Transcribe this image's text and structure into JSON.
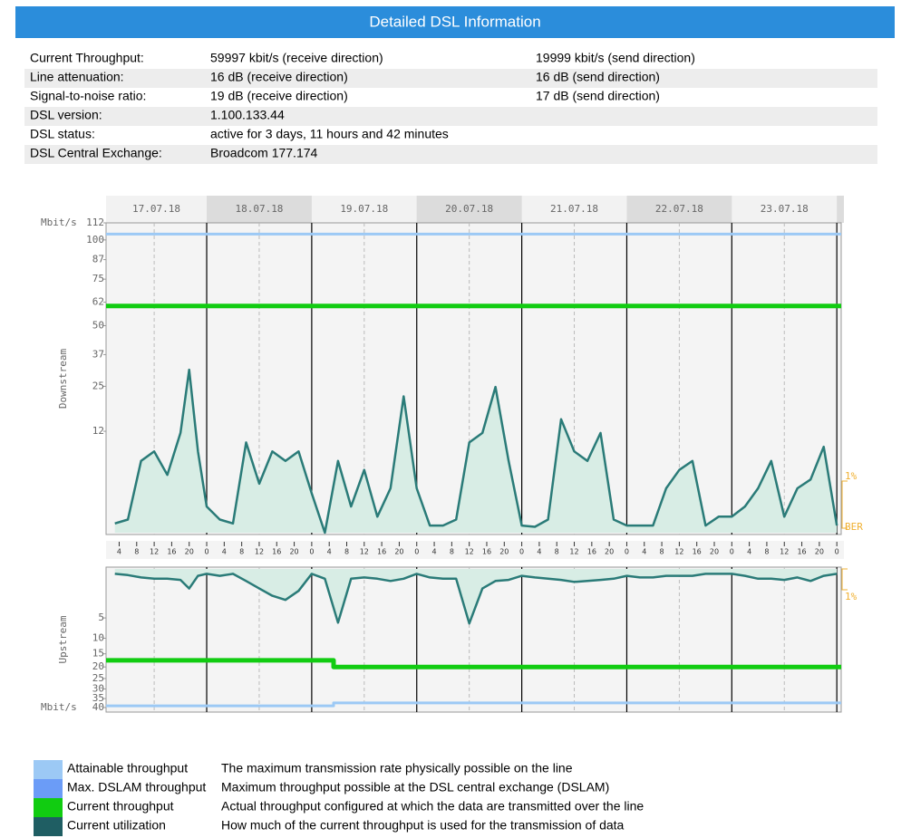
{
  "header": {
    "title": "Detailed DSL Information"
  },
  "info": {
    "rows": [
      [
        "Current Throughput:",
        "59997 kbit/s (receive direction)",
        "19999 kbit/s (send direction)"
      ],
      [
        "Line attenuation:",
        "16 dB (receive direction)",
        "16 dB (send direction)"
      ],
      [
        "Signal-to-noise ratio:",
        "19 dB (receive direction)",
        "17 dB (send direction)"
      ],
      [
        "DSL version:",
        "1.100.133.44"
      ],
      [
        "DSL status:",
        "active for 3 days, 11 hours and 42 minutes"
      ],
      [
        "DSL Central Exchange:",
        "Broadcom 177.174"
      ]
    ]
  },
  "date_header": {
    "dates": [
      "17.07.18",
      "18.07.18",
      "19.07.18",
      "20.07.18",
      "21.07.18",
      "22.07.18",
      "23.07.18"
    ]
  },
  "chart_data": [
    {
      "type": "line",
      "axis_label": "Downstream",
      "unit_label": "Mbit/s",
      "scale": "sqrt",
      "xlim": [
        1,
        169
      ],
      "ylim": [
        0,
        112
      ],
      "yticks": [
        12,
        25,
        37,
        50,
        62,
        75,
        87,
        100,
        112
      ],
      "xticks": [
        4,
        8,
        12,
        16,
        20,
        {
          "value": 24,
          "label": "0"
        },
        {
          "value": 28,
          "label": "4"
        },
        {
          "value": 32,
          "label": "8"
        },
        {
          "value": 36,
          "label": "12"
        },
        {
          "value": 40,
          "label": "16"
        },
        {
          "value": 44,
          "label": "20"
        },
        {
          "value": 48,
          "label": "0"
        },
        {
          "value": 52,
          "label": "4"
        },
        {
          "value": 56,
          "label": "8"
        },
        {
          "value": 60,
          "label": "12"
        },
        {
          "value": 64,
          "label": "16"
        },
        {
          "value": 68,
          "label": "20"
        },
        {
          "value": 72,
          "label": "0"
        },
        {
          "value": 76,
          "label": "4"
        },
        {
          "value": 80,
          "label": "8"
        },
        {
          "value": 84,
          "label": "12"
        },
        {
          "value": 88,
          "label": "16"
        },
        {
          "value": 92,
          "label": "20"
        },
        {
          "value": 96,
          "label": "0"
        },
        {
          "value": 100,
          "label": "4"
        },
        {
          "value": 104,
          "label": "8"
        },
        {
          "value": 108,
          "label": "12"
        },
        {
          "value": 112,
          "label": "16"
        },
        {
          "value": 116,
          "label": "20"
        },
        {
          "value": 120,
          "label": "0"
        },
        {
          "value": 124,
          "label": "4"
        },
        {
          "value": 128,
          "label": "8"
        },
        {
          "value": 132,
          "label": "12"
        },
        {
          "value": 136,
          "label": "16"
        },
        {
          "value": 140,
          "label": "20"
        },
        {
          "value": 144,
          "label": "0"
        },
        {
          "value": 148,
          "label": "4"
        },
        {
          "value": 152,
          "label": "8"
        },
        {
          "value": 156,
          "label": "12"
        },
        {
          "value": 160,
          "label": "16"
        },
        {
          "value": 164,
          "label": "20"
        },
        {
          "value": 168,
          "label": "0"
        }
      ],
      "annotations": [
        "1%",
        "BER"
      ],
      "series": [
        {
          "color": "#9cc9f5",
          "x": [
            1,
            169
          ],
          "values": [
            104,
            104
          ]
        },
        {
          "color": "#11cc11",
          "x": [
            1,
            169
          ],
          "values": [
            60,
            60
          ]
        },
        {
          "color": "#2a7b78",
          "fill": "#d8ede5",
          "x": [
            3,
            6,
            9,
            12,
            15,
            18,
            20,
            22,
            24,
            27,
            30,
            33,
            36,
            39,
            42,
            45,
            48,
            51,
            54,
            57,
            60,
            63,
            66,
            69,
            72,
            75,
            78,
            81,
            84,
            87,
            90,
            93,
            96,
            99,
            102,
            105,
            108,
            111,
            114,
            117,
            120,
            123,
            126,
            129,
            132,
            135,
            138,
            141,
            144,
            147,
            150,
            153,
            156,
            159,
            162,
            165,
            168
          ],
          "values": [
            0.1,
            0.2,
            6,
            7.7,
            3.9,
            11.6,
            31,
            7.7,
            0.8,
            0.2,
            0.1,
            9.5,
            2.8,
            7.7,
            6,
            7.7,
            1.8,
            0,
            6,
            0.8,
            4.6,
            0.3,
            2.3,
            21.7,
            2.3,
            0.06,
            0.06,
            0.2,
            9.5,
            11.6,
            24.8,
            6,
            0.06,
            0.04,
            0.2,
            15,
            7.7,
            6,
            11.6,
            0.2,
            0.06,
            0.06,
            0.06,
            2.3,
            4.6,
            6,
            0.06,
            0.3,
            0.3,
            0.8,
            2.3,
            6,
            0.3,
            2.3,
            3.3,
            8.6,
            0.06
          ]
        }
      ]
    },
    {
      "type": "line",
      "axis_label": "Upstream",
      "unit_label": "Mbit/s",
      "scale": "sqrt",
      "inverted": true,
      "xlim": [
        1,
        169
      ],
      "ylim": [
        0,
        40
      ],
      "yticks": [
        5,
        10,
        15,
        20,
        25,
        30,
        35,
        40
      ],
      "annotations": [
        "1%"
      ],
      "series": [
        {
          "color": "#9cc9f5",
          "x": [
            1,
            53,
            53,
            169
          ],
          "values": [
            39,
            39,
            37.4,
            37.4
          ]
        },
        {
          "color": "#11cc11",
          "x": [
            1,
            53,
            53,
            169
          ],
          "values": [
            17.4,
            17.4,
            20,
            20
          ]
        },
        {
          "color": "#2a7b78",
          "fill": "#d8ede5",
          "x": [
            3,
            6,
            9,
            12,
            15,
            18,
            20,
            22,
            24,
            27,
            30,
            33,
            36,
            39,
            42,
            45,
            48,
            51,
            54,
            57,
            60,
            63,
            66,
            69,
            72,
            75,
            78,
            81,
            84,
            87,
            90,
            93,
            96,
            99,
            102,
            105,
            108,
            111,
            114,
            117,
            120,
            123,
            126,
            129,
            132,
            135,
            138,
            141,
            144,
            147,
            150,
            153,
            156,
            159,
            162,
            165,
            168
          ],
          "values": [
            0.05,
            0.08,
            0.15,
            0.2,
            0.2,
            0.25,
            0.8,
            0.1,
            0.05,
            0.1,
            0.05,
            0.3,
            0.8,
            1.5,
            2,
            1,
            0.05,
            0.2,
            6,
            0.2,
            0.15,
            0.2,
            0.3,
            0.2,
            0.05,
            0.15,
            0.2,
            0.2,
            6.2,
            0.8,
            0.3,
            0.25,
            0.1,
            0.15,
            0.2,
            0.25,
            0.35,
            0.3,
            0.25,
            0.2,
            0.1,
            0.15,
            0.15,
            0.1,
            0.1,
            0.1,
            0.05,
            0.05,
            0.05,
            0.1,
            0.2,
            0.2,
            0.25,
            0.15,
            0.3,
            0.1,
            0.05
          ]
        }
      ]
    }
  ],
  "legend": [
    {
      "name": "Attainable throughput",
      "description": "The maximum transmission rate physically possible on the line",
      "color": "#9cc9f5"
    },
    {
      "name": "Max. DSLAM throughput",
      "description": "Maximum throughput possible at the DSL central exchange (DSLAM)",
      "color": "#6b9cf7"
    },
    {
      "name": "Current throughput",
      "description": "Actual throughput configured at which the data are transmitted over the line",
      "color": "#11cc11"
    },
    {
      "name": "Current utilization",
      "description": "How much of the current throughput is used for the transmission of data",
      "color": "#1f5e63"
    }
  ]
}
